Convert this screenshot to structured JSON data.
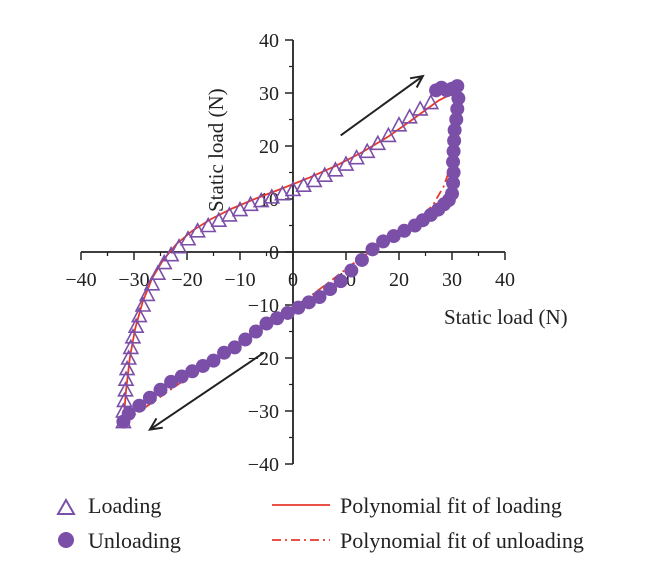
{
  "colors": {
    "marker": "#7b4fa8",
    "fit": "#e8382a",
    "axis": "#222222",
    "arrow": "#222222"
  },
  "chart_data": {
    "type": "scatter",
    "xlabel": "Static load (N)",
    "ylabel": "Static load (N)",
    "xlim": [
      -40,
      40
    ],
    "ylim": [
      -40,
      40
    ],
    "x_ticks": [
      -40,
      -30,
      -20,
      -10,
      0,
      10,
      20,
      30,
      40
    ],
    "y_ticks": [
      -40,
      -30,
      -20,
      -10,
      0,
      10,
      20,
      30,
      40
    ],
    "grid": false,
    "legend_position": "bottom",
    "series": [
      {
        "name": "Loading",
        "marker": "open-triangle",
        "x": [
          -32,
          -32,
          -31.8,
          -31.6,
          -31.5,
          -31.3,
          -31,
          -30.6,
          -30.2,
          -29.6,
          -29,
          -28.3,
          -27.5,
          -26.6,
          -25.5,
          -24.3,
          -23,
          -21.5,
          -19.8,
          -18,
          -16,
          -14,
          -12,
          -10,
          -8,
          -6,
          -4,
          -2,
          0,
          2,
          4,
          6,
          8,
          10,
          12,
          14,
          16,
          18,
          20,
          22,
          24,
          26
        ],
        "y": [
          -32,
          -30,
          -28,
          -26,
          -24,
          -22,
          -20,
          -18,
          -16,
          -14,
          -12,
          -10,
          -8,
          -6,
          -4,
          -2,
          -0.5,
          1,
          2.5,
          4,
          5,
          6,
          7,
          8,
          9,
          9.7,
          10.4,
          11,
          11.8,
          12.6,
          13.5,
          14.5,
          15.5,
          16.6,
          17.8,
          19,
          20.5,
          22,
          24,
          25.5,
          27,
          28.2
        ]
      },
      {
        "name": "Unloading",
        "marker": "filled-circle",
        "x": [
          27,
          28,
          29,
          30,
          31,
          31.2,
          31,
          30.8,
          30.5,
          30.4,
          30.3,
          30.2,
          30.3,
          30.2,
          30,
          29.4,
          28.5,
          27.4,
          26,
          24.5,
          23,
          21,
          19,
          17,
          15,
          13,
          11,
          9,
          7,
          5,
          3,
          1,
          -1,
          -3,
          -5,
          -7,
          -9,
          -11,
          -13,
          -15,
          -17,
          -19,
          -21,
          -23,
          -25,
          -27,
          -29,
          -31,
          -32
        ],
        "y": [
          30.5,
          31,
          30.5,
          30.8,
          31.3,
          29,
          27,
          25,
          23,
          21,
          19,
          17,
          15,
          13,
          11,
          9.8,
          9,
          8,
          7,
          6,
          5,
          4,
          3,
          2,
          0.5,
          -1.5,
          -3.5,
          -5.5,
          -7,
          -8.5,
          -9.5,
          -10.5,
          -11.5,
          -12.5,
          -13.5,
          -15,
          -16.5,
          -18,
          -19,
          -20.5,
          -21.5,
          -22.5,
          -23.5,
          -24.5,
          -26,
          -27.5,
          -29,
          -30.5,
          -32
        ]
      },
      {
        "name": "Polynomial fit of loading",
        "line_style": "solid",
        "x": [
          -32,
          -31.5,
          -30.8,
          -29.8,
          -28.4,
          -26.6,
          -24.5,
          -22,
          -19,
          -15.5,
          -11.5,
          -7,
          -2,
          3,
          8,
          13,
          18,
          22,
          25,
          27.5,
          29.5,
          31
        ],
        "y": [
          -32,
          -26,
          -20,
          -14.5,
          -9.5,
          -5,
          -1.5,
          1.5,
          4,
          6.2,
          8.2,
          10.1,
          12,
          14,
          16.2,
          18.8,
          21.8,
          24.6,
          26.8,
          28.6,
          29.6,
          29.6
        ]
      },
      {
        "name": "Polynomial fit of unloading",
        "line_style": "dash-dot",
        "x": [
          31,
          30.8,
          30,
          28.5,
          26.5,
          24,
          21,
          18,
          15,
          12,
          9,
          6,
          3,
          0,
          -3,
          -6,
          -9,
          -12,
          -15,
          -18,
          -21,
          -24,
          -27,
          -30,
          -32
        ],
        "y": [
          29,
          23,
          17,
          12.5,
          9,
          6.3,
          4.2,
          2.3,
          0.4,
          -1.7,
          -4,
          -6.3,
          -8.5,
          -10.5,
          -12.5,
          -14.5,
          -16.6,
          -18.6,
          -20.5,
          -22.5,
          -24.5,
          -26.6,
          -28.7,
          -30.8,
          -32
        ]
      }
    ],
    "annotations": [
      {
        "type": "arrow",
        "direction": "up-right",
        "from": [
          9,
          22
        ],
        "to": [
          24.5,
          33.2
        ]
      },
      {
        "type": "arrow",
        "direction": "down-left",
        "from": [
          -5.5,
          -19
        ],
        "to": [
          -27,
          -33.5
        ]
      }
    ]
  }
}
